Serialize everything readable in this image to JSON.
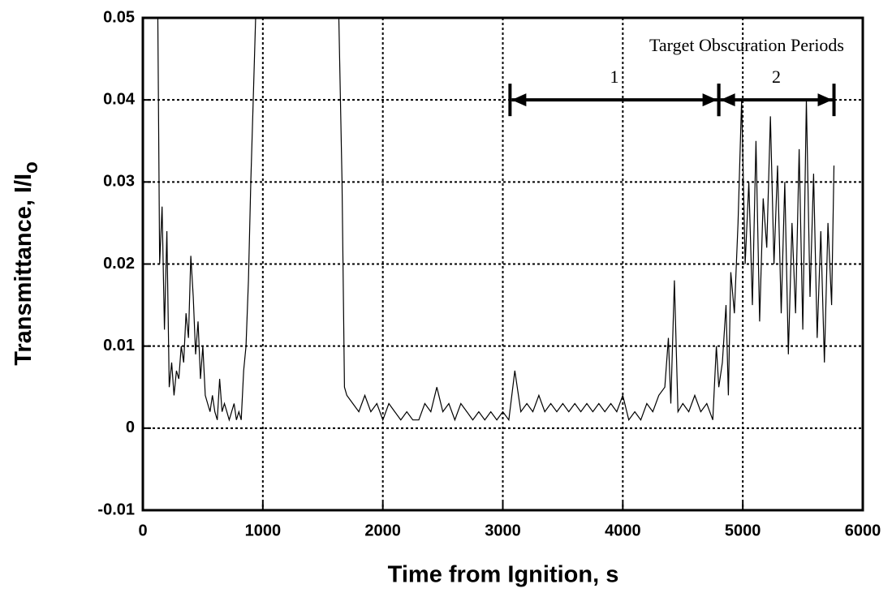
{
  "chart_data": {
    "type": "line",
    "xlabel": "Time from Ignition, s",
    "ylabel": "Transmittance,  I/I",
    "ylabel_subscript": "o",
    "annotation": "Target Obscuration Periods",
    "periods": [
      {
        "label": "1",
        "start": 3060,
        "end": 4800,
        "y": 0.04
      },
      {
        "label": "2",
        "start": 4800,
        "end": 5760,
        "y": 0.04
      }
    ],
    "xlim": [
      0,
      6000
    ],
    "xticks": [
      0,
      1000,
      2000,
      3000,
      4000,
      5000,
      6000
    ],
    "ylim": [
      -0.01,
      0.05
    ],
    "yticks": [
      -0.01,
      0,
      0.01,
      0.02,
      0.03,
      0.04,
      0.05
    ],
    "grid": true,
    "series": [
      {
        "color": "#000000",
        "x": [
          120,
          140,
          160,
          180,
          200,
          220,
          240,
          260,
          280,
          300,
          320,
          340,
          360,
          380,
          400,
          420,
          440,
          460,
          480,
          500,
          520,
          540,
          560,
          580,
          600,
          620,
          640,
          660,
          680,
          700,
          720,
          740,
          760,
          780,
          800,
          820,
          840,
          860,
          880,
          900,
          920,
          960,
          1620,
          1660,
          1680,
          1700,
          1750,
          1800,
          1850,
          1900,
          1950,
          2000,
          2050,
          2100,
          2150,
          2200,
          2250,
          2300,
          2350,
          2400,
          2450,
          2500,
          2550,
          2600,
          2650,
          2700,
          2750,
          2800,
          2850,
          2900,
          2950,
          3000,
          3050,
          3100,
          3150,
          3200,
          3250,
          3300,
          3350,
          3400,
          3450,
          3500,
          3550,
          3600,
          3650,
          3700,
          3750,
          3800,
          3850,
          3900,
          3950,
          4000,
          4050,
          4100,
          4150,
          4200,
          4250,
          4300,
          4350,
          4380,
          4400,
          4430,
          4460,
          4500,
          4550,
          4600,
          4650,
          4700,
          4750,
          4780,
          4800,
          4830,
          4860,
          4880,
          4900,
          4930,
          4960,
          4990,
          5020,
          5050,
          5080,
          5110,
          5140,
          5170,
          5200,
          5230,
          5260,
          5290,
          5320,
          5350,
          5380,
          5410,
          5440,
          5470,
          5500,
          5530,
          5560,
          5590,
          5620,
          5650,
          5680,
          5710,
          5740,
          5760
        ],
        "values": [
          0.06,
          0.02,
          0.027,
          0.012,
          0.024,
          0.005,
          0.008,
          0.004,
          0.007,
          0.006,
          0.01,
          0.008,
          0.014,
          0.011,
          0.021,
          0.016,
          0.009,
          0.013,
          0.006,
          0.01,
          0.004,
          0.003,
          0.002,
          0.004,
          0.002,
          0.001,
          0.006,
          0.002,
          0.003,
          0.002,
          0.001,
          0.002,
          0.003,
          0.001,
          0.002,
          0.001,
          0.007,
          0.01,
          0.018,
          0.03,
          0.04,
          0.06,
          0.06,
          0.03,
          0.005,
          0.004,
          0.003,
          0.002,
          0.004,
          0.002,
          0.003,
          0.001,
          0.003,
          0.002,
          0.001,
          0.002,
          0.001,
          0.001,
          0.003,
          0.002,
          0.005,
          0.002,
          0.003,
          0.001,
          0.003,
          0.002,
          0.001,
          0.002,
          0.001,
          0.002,
          0.001,
          0.002,
          0.001,
          0.007,
          0.002,
          0.003,
          0.002,
          0.004,
          0.002,
          0.003,
          0.002,
          0.003,
          0.002,
          0.003,
          0.002,
          0.003,
          0.002,
          0.003,
          0.002,
          0.003,
          0.002,
          0.004,
          0.001,
          0.002,
          0.001,
          0.003,
          0.002,
          0.004,
          0.005,
          0.011,
          0.003,
          0.018,
          0.002,
          0.003,
          0.002,
          0.004,
          0.002,
          0.003,
          0.001,
          0.01,
          0.005,
          0.008,
          0.015,
          0.004,
          0.019,
          0.014,
          0.025,
          0.04,
          0.02,
          0.03,
          0.015,
          0.035,
          0.013,
          0.028,
          0.022,
          0.038,
          0.02,
          0.032,
          0.014,
          0.03,
          0.009,
          0.025,
          0.014,
          0.034,
          0.012,
          0.04,
          0.016,
          0.031,
          0.011,
          0.024,
          0.008,
          0.025,
          0.015,
          0.032
        ]
      }
    ]
  }
}
